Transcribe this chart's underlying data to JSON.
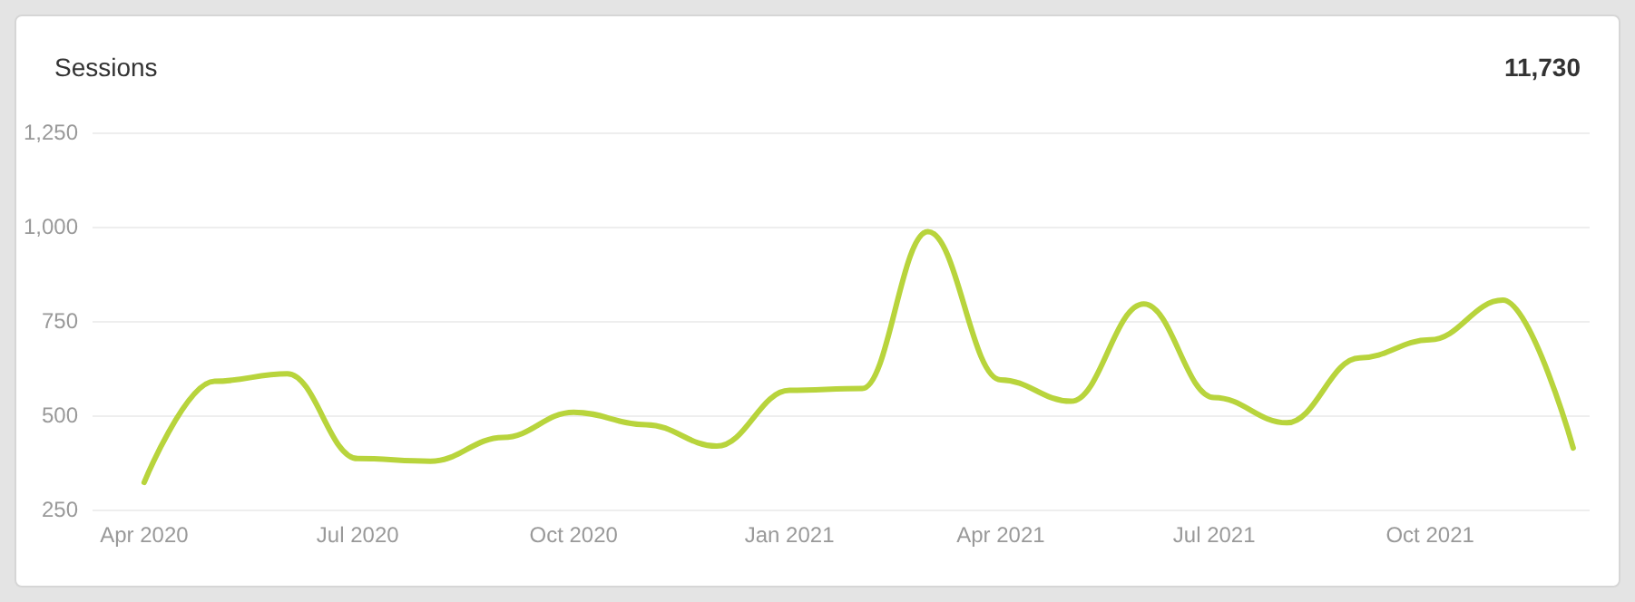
{
  "chart_data": {
    "type": "line",
    "title": "Sessions",
    "annotations": [
      "11,730"
    ],
    "x": [
      "2020-04",
      "2020-05",
      "2020-06",
      "2020-07",
      "2020-08",
      "2020-09",
      "2020-10",
      "2020-11",
      "2020-12",
      "2021-01",
      "2021-02",
      "2021-03",
      "2021-04",
      "2021-05",
      "2021-06",
      "2021-07",
      "2021-08",
      "2021-09",
      "2021-10",
      "2021-11",
      "2021-12"
    ],
    "series": [
      {
        "color": "#b8d43c",
        "values": [
          322,
          590,
          610,
          385,
          378,
          441,
          508,
          475,
          418,
          566,
          571,
          987,
          594,
          537,
          795,
          547,
          480,
          652,
          700,
          805,
          413
        ]
      }
    ],
    "xlim": [
      "2020-03-10",
      "2021-12-08"
    ],
    "xticks": [
      {
        "value": "2020-04",
        "label": "Apr 2020"
      },
      {
        "value": "2020-07",
        "label": "Jul 2020"
      },
      {
        "value": "2020-10",
        "label": "Oct 2020"
      },
      {
        "value": "2021-01",
        "label": "Jan 2021"
      },
      {
        "value": "2021-04",
        "label": "Apr 2021"
      },
      {
        "value": "2021-07",
        "label": "Jul 2021"
      },
      {
        "value": "2021-10",
        "label": "Oct 2021"
      }
    ],
    "ylim": [
      250,
      1250
    ],
    "yticks": [
      250,
      500,
      750,
      {
        "value": 1000,
        "label": "1,000"
      },
      {
        "value": 1250,
        "label": "1,250"
      }
    ],
    "grid": "y",
    "marker": "none",
    "line_style": "solid"
  }
}
